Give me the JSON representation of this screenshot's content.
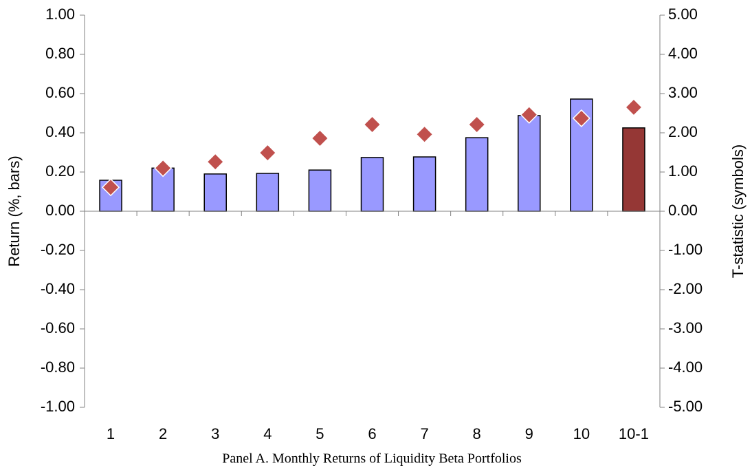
{
  "chart_data": {
    "type": "bar_scatter_dual",
    "title": "Panel A. Monthly Returns of Liquidity Beta Portfolios",
    "y_label": "Return (%, bars)",
    "y2_label": "T-statistic (symbols)",
    "categories": [
      "1",
      "2",
      "3",
      "4",
      "5",
      "6",
      "7",
      "8",
      "9",
      "10",
      "10-1"
    ],
    "ylim": [
      -1.0,
      1.0
    ],
    "yticks": [
      {
        "value": -1.0,
        "label": "-1.00"
      },
      {
        "value": -0.8,
        "label": "-0.80"
      },
      {
        "value": -0.6,
        "label": "-0.60"
      },
      {
        "value": -0.4,
        "label": "-0.40"
      },
      {
        "value": -0.2,
        "label": "-0.20"
      },
      {
        "value": 0,
        "label": "0.00"
      },
      {
        "value": 0.2,
        "label": "0.20"
      },
      {
        "value": 0.4,
        "label": "0.40"
      },
      {
        "value": 0.6,
        "label": "0.60"
      },
      {
        "value": 0.8,
        "label": "0.80"
      },
      {
        "value": 1.0,
        "label": "1.00"
      }
    ],
    "y2lim": [
      -5.0,
      5.0
    ],
    "y2ticks": [
      {
        "value": -5.0,
        "label": "-5.00"
      },
      {
        "value": -4.0,
        "label": "-4.00"
      },
      {
        "value": -3.0,
        "label": "-3.00"
      },
      {
        "value": -2.0,
        "label": "-2.00"
      },
      {
        "value": -1.0,
        "label": "-1.00"
      },
      {
        "value": 0,
        "label": "0.00"
      },
      {
        "value": 1.0,
        "label": "1.00"
      },
      {
        "value": 2.0,
        "label": "2.00"
      },
      {
        "value": 3.0,
        "label": "3.00"
      },
      {
        "value": 4.0,
        "label": "4.00"
      },
      {
        "value": 5.0,
        "label": "5.00"
      }
    ],
    "series": [
      {
        "type": "bar",
        "colors": [
          "#9999ff",
          "#9999ff",
          "#9999ff",
          "#9999ff",
          "#9999ff",
          "#9999ff",
          "#9999ff",
          "#9999ff",
          "#9999ff",
          "#9999ff",
          "#953735"
        ],
        "values": [
          0.158,
          0.22,
          0.19,
          0.193,
          0.21,
          0.274,
          0.277,
          0.375,
          0.488,
          0.572,
          0.425
        ]
      },
      {
        "type": "scatter",
        "axis": "y2",
        "color": "#c0504d",
        "values": [
          0.61,
          1.1,
          1.26,
          1.49,
          1.86,
          2.21,
          1.96,
          2.21,
          2.46,
          2.37,
          2.65
        ]
      }
    ]
  }
}
